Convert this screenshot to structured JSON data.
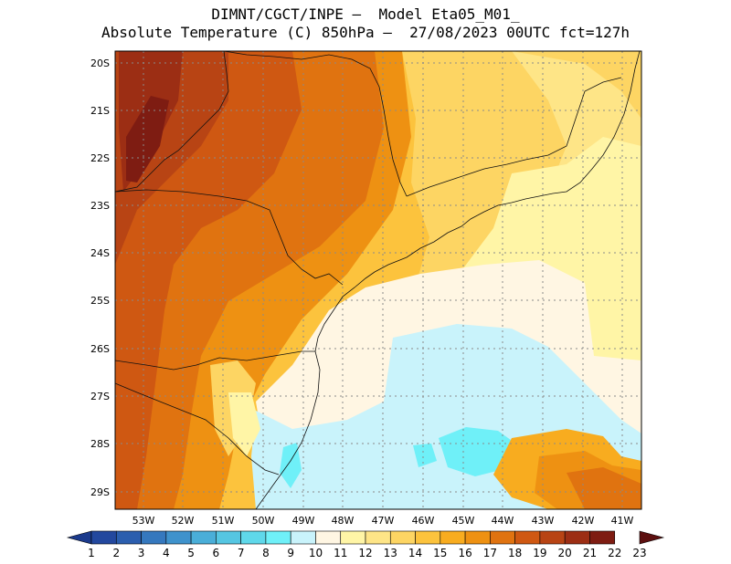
{
  "header": {
    "line1": "DIMNT/CGCT/INPE –  Model Eta05_M01_",
    "line2": "Absolute Temperature (C) 850hPa –  27/08/2023 00UTC fct=127h"
  },
  "map": {
    "lat_labels": [
      "20S",
      "21S",
      "22S",
      "23S",
      "24S",
      "25S",
      "26S",
      "27S",
      "28S",
      "29S"
    ],
    "lon_labels": [
      "53W",
      "52W",
      "51W",
      "50W",
      "49W",
      "48W",
      "47W",
      "46W",
      "45W",
      "44W",
      "43W",
      "42W",
      "41W"
    ]
  },
  "colorbar": {
    "labels": [
      "1",
      "2",
      "3",
      "4",
      "5",
      "6",
      "7",
      "8",
      "9",
      "10",
      "11",
      "12",
      "13",
      "14",
      "15",
      "16",
      "17",
      "18",
      "19",
      "20",
      "21",
      "22",
      "23"
    ],
    "colors": [
      "#1b3a8c",
      "#23489e",
      "#2b5eae",
      "#3578be",
      "#3f92cc",
      "#4aaed8",
      "#55c6e2",
      "#5fd8ea",
      "#6ff0f8",
      "#c9f3fb",
      "#fff6e3",
      "#fff5a6",
      "#fee587",
      "#fdd563",
      "#fcc33d",
      "#f8ac1f",
      "#ee9112",
      "#e07310",
      "#cf5812",
      "#b84414",
      "#9c2e14",
      "#7e1c12",
      "#5c0f0f"
    ]
  }
}
